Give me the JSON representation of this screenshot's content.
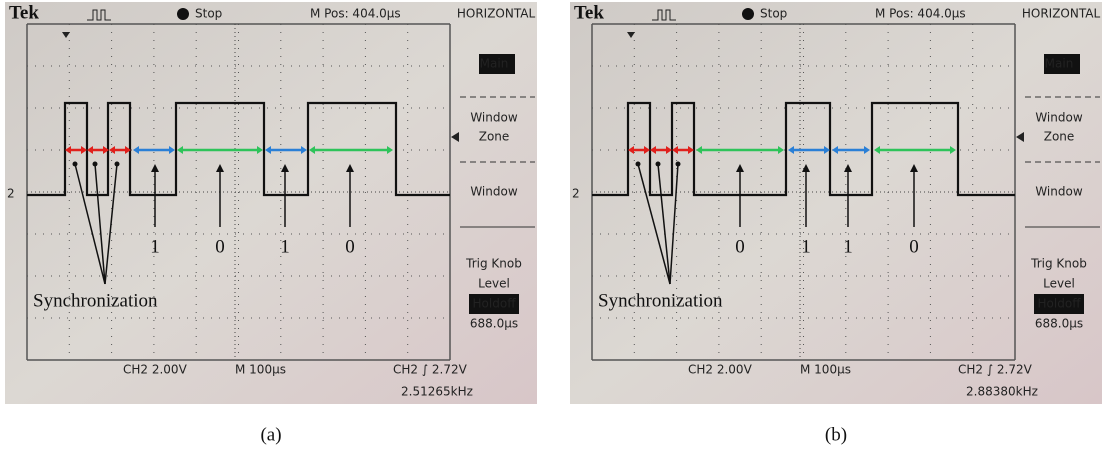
{
  "panels": [
    {
      "header": {
        "brand": "Tek",
        "status": "Stop",
        "position": "M Pos: 404.0µs"
      },
      "menu": {
        "title": "HORIZONTAL",
        "items": [
          "Main",
          "Window",
          "Zone",
          "Window",
          "Trig Knob",
          "Level",
          "Holdoff",
          "688.0µs"
        ]
      },
      "channel_marker": "2",
      "footer": {
        "channel": "CH2  2.00V",
        "timebase": "M 100µs",
        "trigger": "CH2 ∫ 2.72V",
        "frequency": "2.51265kHz"
      },
      "annotations": {
        "bits": [
          "1",
          "0",
          "1",
          "0"
        ],
        "sync_label": "Synchronization"
      },
      "caption": "(a)"
    },
    {
      "header": {
        "brand": "Tek",
        "status": "Stop",
        "position": "M Pos: 404.0µs"
      },
      "menu": {
        "title": "HORIZONTAL",
        "items": [
          "Main",
          "Window",
          "Zone",
          "Window",
          "Trig Knob",
          "Level",
          "Holdoff",
          "688.0µs"
        ]
      },
      "channel_marker": "2",
      "footer": {
        "channel": "CH2  2.00V",
        "timebase": "M 100µs",
        "trigger": "CH2 ∫ 2.72V",
        "frequency": "2.88380kHz"
      },
      "annotations": {
        "bits": [
          "0",
          "1",
          "1",
          "0"
        ],
        "sync_label": "Synchronization"
      },
      "caption": "(b)"
    }
  ]
}
